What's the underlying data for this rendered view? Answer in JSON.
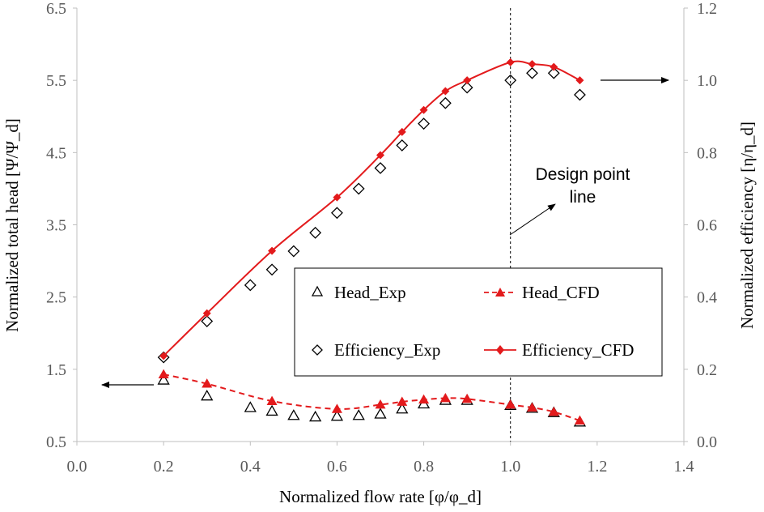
{
  "chart_data": {
    "type": "scatter",
    "title": "",
    "xlabel": "Normalized flow rate [φ/φ_d]",
    "ylabel_left": "Normalized total head [Ψ/Ψ_d]",
    "ylabel_right": "Normalized efficiency [η/η_d]",
    "xlim": [
      0.0,
      1.4
    ],
    "ylim_left": [
      0.5,
      6.5
    ],
    "ylim_right": [
      0.0,
      1.2
    ],
    "x_ticks": [
      "0.0",
      "0.2",
      "0.4",
      "0.6",
      "0.8",
      "1.0",
      "1.2",
      "1.4"
    ],
    "y_left_ticks": [
      "0.5",
      "1.5",
      "2.5",
      "3.5",
      "4.5",
      "5.5",
      "6.5"
    ],
    "y_right_ticks": [
      "0.0",
      "0.2",
      "0.4",
      "0.6",
      "0.8",
      "1.0",
      "1.2"
    ],
    "grid": false,
    "legend_position": "center-right",
    "series": [
      {
        "name": "Head_Exp",
        "axis": "left",
        "marker": "triangle-open",
        "color": "#000000",
        "x": [
          0.2,
          0.3,
          0.4,
          0.45,
          0.5,
          0.55,
          0.6,
          0.65,
          0.7,
          0.75,
          0.8,
          0.85,
          0.9,
          1.0,
          1.05,
          1.1,
          1.16
        ],
        "y": [
          1.35,
          1.13,
          0.97,
          0.92,
          0.86,
          0.84,
          0.85,
          0.86,
          0.88,
          0.95,
          1.02,
          1.07,
          1.07,
          1.0,
          0.96,
          0.9,
          0.77
        ]
      },
      {
        "name": "Head_CFD",
        "axis": "left",
        "marker": "triangle-filled",
        "line": "dashed",
        "color": "#e31a1c",
        "x": [
          0.2,
          0.3,
          0.45,
          0.6,
          0.7,
          0.75,
          0.8,
          0.85,
          0.9,
          1.0,
          1.05,
          1.1,
          1.16
        ],
        "y": [
          1.43,
          1.3,
          1.06,
          0.95,
          1.01,
          1.05,
          1.08,
          1.1,
          1.09,
          1.01,
          0.97,
          0.91,
          0.79
        ]
      },
      {
        "name": "Efficiency_Exp",
        "axis": "right",
        "marker": "diamond-open",
        "color": "#000000",
        "x": [
          0.2,
          0.3,
          0.4,
          0.45,
          0.5,
          0.55,
          0.6,
          0.65,
          0.7,
          0.75,
          0.8,
          0.85,
          0.9,
          1.0,
          1.05,
          1.1,
          1.16
        ],
        "y": [
          0.233,
          0.333,
          0.433,
          0.476,
          0.527,
          0.578,
          0.633,
          0.7,
          0.757,
          0.82,
          0.88,
          0.937,
          0.98,
          1.0,
          1.02,
          1.02,
          0.96
        ]
      },
      {
        "name": "Efficiency_CFD",
        "axis": "right",
        "marker": "diamond-filled",
        "line": "solid",
        "color": "#e31a1c",
        "x": [
          0.2,
          0.3,
          0.45,
          0.6,
          0.7,
          0.75,
          0.8,
          0.85,
          0.9,
          1.0,
          1.05,
          1.1,
          1.16
        ],
        "y": [
          0.237,
          0.355,
          0.528,
          0.676,
          0.793,
          0.857,
          0.918,
          0.97,
          1.0,
          1.05,
          1.045,
          1.037,
          1.0
        ]
      }
    ],
    "design_point": {
      "x": 1.0,
      "label_line1": "Design point",
      "label_line2": "line"
    }
  }
}
